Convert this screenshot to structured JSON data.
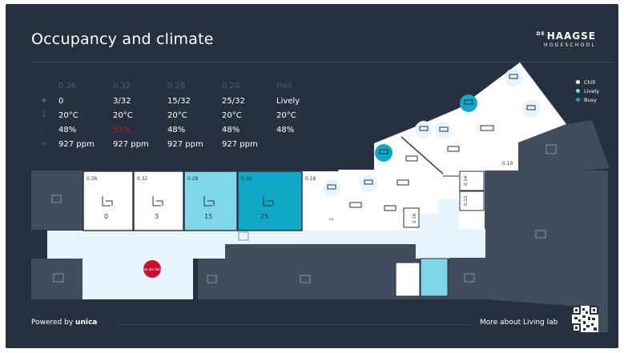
{
  "header": {
    "title": "Occupancy and climate",
    "logo_top": "HAAGSE",
    "logo_prefix": "DE",
    "logo_bottom": "HOGESCHOOL"
  },
  "stats": {
    "columns": [
      "0.36",
      "0.32",
      "0.28",
      "0.20",
      "Hall"
    ],
    "rows": [
      {
        "icon": "person-icon",
        "values": [
          "0",
          "3/32",
          "15/32",
          "25/32",
          "Lively"
        ]
      },
      {
        "icon": "thermometer-icon",
        "values": [
          "20°C",
          "20°C",
          "20°C",
          "20°C",
          "20°C"
        ]
      },
      {
        "icon": "humidity-icon",
        "values": [
          "48%",
          "51%",
          "48%",
          "48%",
          "48%"
        ]
      },
      {
        "icon": "co2-icon",
        "values": [
          "927 ppm",
          "927 ppm",
          "927 ppm",
          "927 ppm",
          ""
        ]
      }
    ]
  },
  "legend": {
    "items": [
      {
        "label": "Chill",
        "color": "#ffffff"
      },
      {
        "label": "Lively",
        "color": "#7fd6e6"
      },
      {
        "label": "Busy",
        "color": "#11a8c7"
      }
    ]
  },
  "rooms": {
    "r036": {
      "name": "0.36",
      "count": "0",
      "person": "♟"
    },
    "r032": {
      "name": "0.32",
      "count": "3",
      "person": "♟"
    },
    "r028": {
      "name": "0.28",
      "count": "15",
      "person": "♟"
    },
    "r020": {
      "name": "0.20",
      "count": "25",
      "person": "♟"
    },
    "r018": {
      "name": "0.18"
    },
    "r016": {
      "name": "0.16"
    },
    "r014": {
      "name": "0.14"
    },
    "r012": {
      "name": "0.12"
    },
    "r010": {
      "name": "0.10"
    },
    "co2": "co",
    "you_are_here": "You are here"
  },
  "colors": {
    "background": "#26303e",
    "corridor": "#e6f4fb",
    "chill": "#ffffff",
    "lively": "#7fd6e6",
    "busy": "#11a8c7",
    "inactive_room": "#414c5c",
    "marker": "#c8102e"
  },
  "footer": {
    "powered_by": "Powered by",
    "brand": "unica",
    "more": "More about Living lab"
  }
}
